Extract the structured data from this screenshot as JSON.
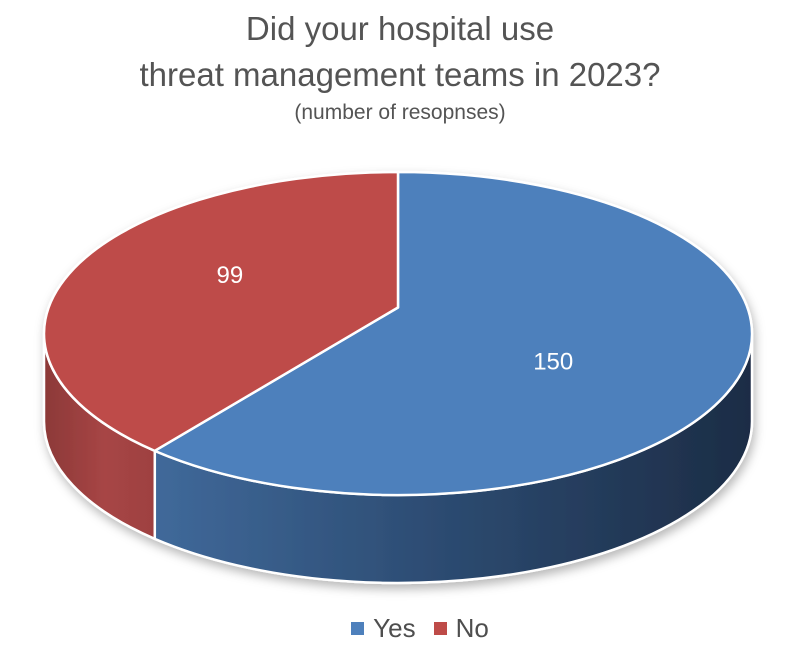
{
  "title": {
    "line1": "Did your hospital use",
    "line2": "threat management teams in 2023?",
    "subtitle": "(number of resopnses)"
  },
  "chart_data": {
    "type": "pie",
    "style": "3d",
    "title": "Did your hospital use threat management teams in 2023?",
    "subtitle": "(number of resopnses)",
    "categories": [
      "Yes",
      "No"
    ],
    "values": [
      150,
      99
    ],
    "start_angle_deg": 0,
    "direction": "clockwise",
    "legend_position": "bottom",
    "data_labels_shown": true,
    "series": [
      {
        "name": "Yes",
        "value": 150,
        "color": "#4E80BC",
        "label_color": "#FFFFFF",
        "side_gradient": [
          {
            "offset": 0,
            "color": "#40699A"
          },
          {
            "offset": 0.4,
            "color": "#2F5078"
          },
          {
            "offset": 1,
            "color": "#1C2C45"
          }
        ]
      },
      {
        "name": "No",
        "value": 99,
        "color": "#BE4B48",
        "label_color": "#FFFFFF",
        "side_gradient": [
          {
            "offset": 0,
            "color": "#8C3938"
          },
          {
            "offset": 0.55,
            "color": "#A74545"
          },
          {
            "offset": 1,
            "color": "#9E4141"
          }
        ]
      }
    ]
  },
  "legend": {
    "items": [
      {
        "label": "Yes",
        "color": "#4E80BC"
      },
      {
        "label": "No",
        "color": "#BE4B48"
      }
    ]
  },
  "colors": {
    "background": "#FFFFFF",
    "title_text": "#545454",
    "legend_text": "#4E4E4E",
    "slice_outline": "#FFFFFF"
  }
}
